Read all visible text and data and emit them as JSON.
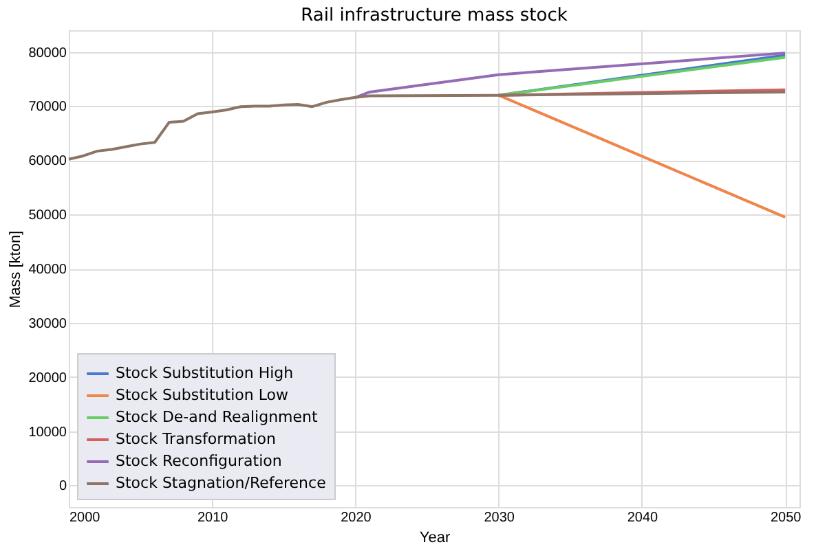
{
  "chart_data": {
    "type": "line",
    "title": "Rail infrastructure mass stock",
    "xlabel": "Year",
    "ylabel": "Mass [kton]",
    "xlim": [
      2000,
      2051
    ],
    "xticks": [
      2000,
      2010,
      2020,
      2030,
      2040,
      2050
    ],
    "ylim": [
      -4000,
      84000
    ],
    "yticks": [
      0,
      10000,
      20000,
      30000,
      40000,
      50000,
      60000,
      70000,
      80000
    ],
    "grid": true,
    "legend": "bottom left",
    "line_style": "solid",
    "marker": "none",
    "series": [
      {
        "name": "Stock Substitution High",
        "color": "#4878d0",
        "x": [
          2030,
          2050
        ],
        "values": [
          72000,
          79400
        ]
      },
      {
        "name": "Stock Substitution Low",
        "color": "#ee854a",
        "x": [
          2030,
          2050
        ],
        "values": [
          72000,
          49500
        ]
      },
      {
        "name": "Stock De-and Realignment",
        "color": "#6acc64",
        "x": [
          2030,
          2050
        ],
        "values": [
          72000,
          79000
        ]
      },
      {
        "name": "Stock Transformation",
        "color": "#d65f5f",
        "x": [
          2030,
          2050
        ],
        "values": [
          72000,
          73000
        ]
      },
      {
        "name": "Stock Reconfiguration",
        "color": "#956cb4",
        "x": [
          2020,
          2021,
          2030,
          2050
        ],
        "values": [
          71600,
          72600,
          75800,
          79800
        ]
      },
      {
        "name": "Stock Stagnation/Reference",
        "color": "#8c7466",
        "x": [
          2000,
          2001,
          2002,
          2003,
          2004,
          2005,
          2006,
          2007,
          2008,
          2009,
          2010,
          2011,
          2012,
          2013,
          2014,
          2015,
          2016,
          2017,
          2018,
          2019,
          2020,
          2021,
          2030,
          2050
        ],
        "values": [
          60200,
          60800,
          61700,
          62000,
          62500,
          63000,
          63300,
          67000,
          67200,
          68600,
          68900,
          69300,
          69900,
          70000,
          70000,
          70200,
          70300,
          69900,
          70700,
          71200,
          71600,
          71900,
          72000,
          72600
        ]
      }
    ]
  }
}
